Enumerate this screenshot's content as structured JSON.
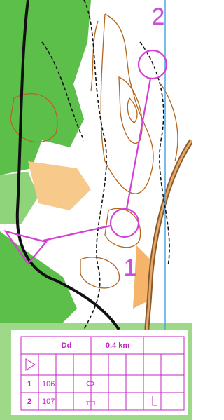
{
  "map": {
    "control_labels": [
      "2",
      "1"
    ]
  },
  "description_sheet": {
    "header": {
      "event": "Dd",
      "length": "0,4 km"
    },
    "rows": [
      {
        "number": 1,
        "code": 106
      },
      {
        "number": 2,
        "code": 107
      }
    ]
  }
}
